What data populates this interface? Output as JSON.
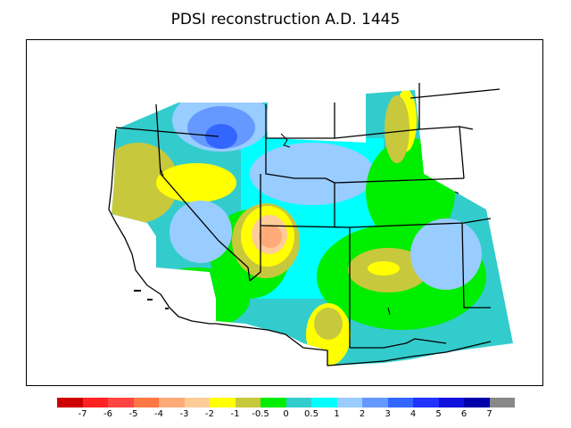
{
  "title": "PDSI reconstruction A.D. 1445",
  "legend": {
    "colors": [
      "#cc0000",
      "#ff2222",
      "#ff4444",
      "#ff7744",
      "#ffaa77",
      "#ffcc99",
      "#ffff00",
      "#c8c83c",
      "#00ee00",
      "#33cccc",
      "#00ffff",
      "#99ccff",
      "#6699ff",
      "#3366ff",
      "#2233ff",
      "#1111dd",
      "#0000aa",
      "#888888"
    ],
    "ticks": [
      "-7",
      "-6",
      "-5",
      "-4",
      "-3",
      "-2",
      "-1",
      "-0.5",
      "0",
      "0.5",
      "1",
      "2",
      "3",
      "4",
      "5",
      "6",
      "7"
    ]
  },
  "map": {
    "palette": {
      "green": "#00ee00",
      "olive": "#c8c83c",
      "yellow": "#ffff00",
      "teal": "#33cccc",
      "cyan": "#00ffff",
      "lightblue": "#99ccff",
      "midblue": "#6699ff",
      "blue": "#3366ff",
      "peach": "#ffcc99",
      "salmon": "#ffaa77",
      "orange": "#ff7744"
    }
  }
}
